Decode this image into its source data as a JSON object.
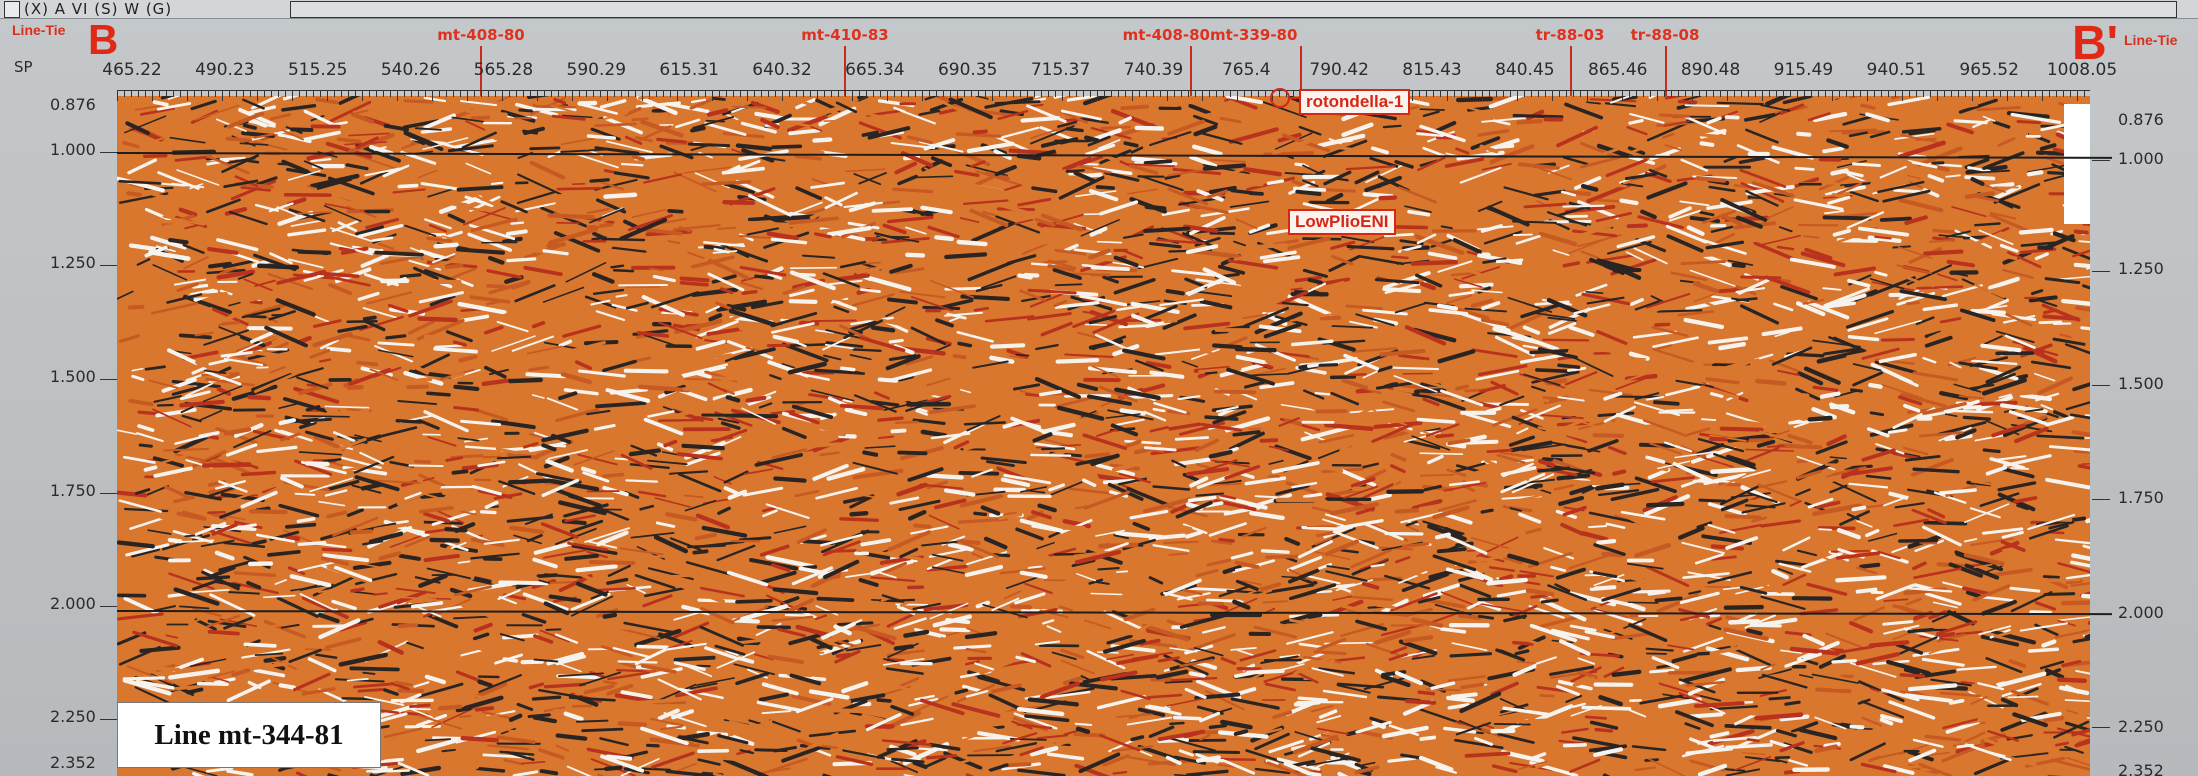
{
  "toolbar": {
    "text": "(X) A VI (S) W (G)"
  },
  "section_ends": {
    "left": "B",
    "right": "B'",
    "left_tie": "Line-Tie",
    "right_tie": "Line-Tie"
  },
  "axis": {
    "sp_label": "SP",
    "shotpoints": [
      "465.22",
      "490.23",
      "515.25",
      "540.26",
      "565.28",
      "590.29",
      "615.31",
      "640.32",
      "665.34",
      "690.35",
      "715.37",
      "740.39",
      "765.4",
      "790.42",
      "815.43",
      "840.45",
      "865.46",
      "890.48",
      "915.49",
      "940.51",
      "965.52",
      "1008.05"
    ],
    "time_left": [
      "0.876",
      "1.000",
      "1.250",
      "1.500",
      "1.750",
      "2.000",
      "2.250",
      "2.352"
    ],
    "time_right": [
      "0.876",
      "1.000",
      "1.250",
      "1.500",
      "1.750",
      "2.000",
      "2.250",
      "2.352"
    ]
  },
  "line_ties": [
    "mt-408-80",
    "mt-410-83",
    "mt-408-80mt-339-80",
    "tr-88-03",
    "tr-88-08"
  ],
  "well_label": "rotondella-1",
  "horizon_label": "LowPlioENI",
  "line_caption": "Line mt-344-81",
  "colors": {
    "seismic_light": "#f6f3ee",
    "seismic_orange": "#d9772e",
    "seismic_red": "#b8321d",
    "seismic_dark": "#2a2523",
    "annotation_red": "#d62616"
  }
}
